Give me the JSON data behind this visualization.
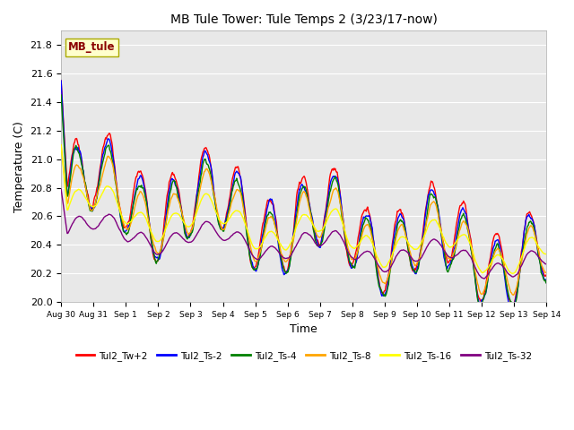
{
  "title": "MB Tule Tower: Tule Temps 2 (3/23/17-now)",
  "xlabel": "Time",
  "ylabel": "Temperature (C)",
  "ylim": [
    20.0,
    21.9
  ],
  "yticks": [
    20.0,
    20.2,
    20.4,
    20.6,
    20.8,
    21.0,
    21.2,
    21.4,
    21.6,
    21.8
  ],
  "plot_bg_color": "#e8e8e8",
  "fig_bg_color": "#ffffff",
  "series_colors": [
    "red",
    "blue",
    "green",
    "orange",
    "yellow",
    "purple"
  ],
  "series_labels": [
    "Tul2_Tw+2",
    "Tul2_Ts-2",
    "Tul2_Ts-4",
    "Tul2_Ts-8",
    "Tul2_Ts-16",
    "Tul2_Ts-32"
  ],
  "watermark_text": "MB_tule",
  "watermark_bg": "#ffffcc",
  "watermark_text_color": "#8b0000",
  "watermark_edge_color": "#aaaa00",
  "tick_labels": [
    "Aug 30",
    "Aug 31",
    "Sep 1",
    "Sep 2",
    "Sep 3",
    "Sep 4",
    "Sep 5",
    "Sep 6",
    "Sep 7",
    "Sep 8",
    "Sep 9",
    "Sep 10",
    "Sep 11",
    "Sep 12",
    "Sep 13",
    "Sep 14"
  ]
}
